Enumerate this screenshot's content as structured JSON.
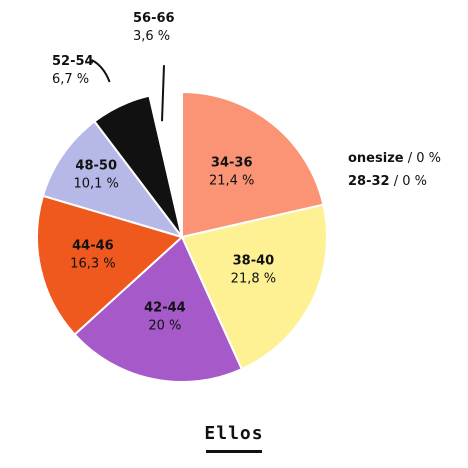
{
  "chart_data": {
    "type": "pie",
    "title": "Ellos",
    "slices": [
      {
        "name": "34-36",
        "value": 21.4,
        "label": "21,4 %",
        "color": "#FA9475"
      },
      {
        "name": "38-40",
        "value": 21.8,
        "label": "21,8 %",
        "color": "#FDF193"
      },
      {
        "name": "42-44",
        "value": 20.0,
        "label": "20 %",
        "color": "#A659C8"
      },
      {
        "name": "44-46",
        "value": 16.3,
        "label": "16,3 %",
        "color": "#F0591E"
      },
      {
        "name": "48-50",
        "value": 10.1,
        "label": "10,1 %",
        "color": "#B6B8E8"
      },
      {
        "name": "52-54",
        "value": 6.7,
        "label": "6,7 %",
        "color": "#111111"
      },
      {
        "name": "56-66",
        "value": 3.6,
        "label": "3,6 %",
        "color": "#FFFFFF"
      }
    ],
    "zero_entries": [
      {
        "name": "onesize",
        "label": "0 %"
      },
      {
        "name": "28-32",
        "label": "0 %"
      }
    ]
  }
}
